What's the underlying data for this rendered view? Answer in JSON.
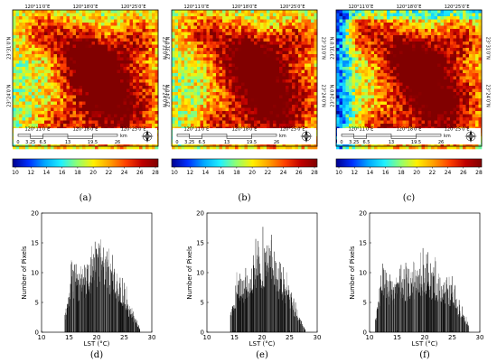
{
  "colorbar": {
    "ticks": [
      "10",
      "12",
      "14",
      "16",
      "18",
      "20",
      "22",
      "24",
      "26",
      "28"
    ],
    "colors": [
      "#00008f",
      "#0030ff",
      "#00a8ff",
      "#20f0ff",
      "#90ff70",
      "#fff000",
      "#ffa000",
      "#ff4000",
      "#c00000",
      "#800000"
    ]
  },
  "maps": [
    {
      "label": "(a)",
      "cold_edge": false
    },
    {
      "label": "(b)",
      "cold_edge": false
    },
    {
      "label": "(c)",
      "cold_edge": true
    }
  ],
  "map_ticks": {
    "top": [
      "120°11′0″E",
      "120°18′0″E",
      "120°25′0″E"
    ],
    "bottom": [
      "120°11′0″E",
      "120°18′0″E",
      "120°25′0″E"
    ],
    "left": [
      "23°31′0″N",
      "23°24′0″N"
    ],
    "right": [
      "23°31′0″N",
      "23°24′0″N"
    ]
  },
  "scalebar": {
    "ticks": [
      "0",
      "3.25",
      "6.5",
      "13",
      "19.5",
      "26"
    ],
    "unit": "km"
  },
  "north_arrow": "N",
  "chart_data": [
    {
      "type": "bar",
      "label": "(d)",
      "xlabel": "LST (°C)",
      "ylabel": "Number of Pixels",
      "xlim": [
        10,
        30
      ],
      "ylim": [
        0,
        20
      ],
      "xticks": [
        10,
        15,
        20,
        25,
        30
      ],
      "yticks": [
        0,
        5,
        10,
        15,
        20
      ],
      "x_range": [
        14.2,
        27.8
      ],
      "envelope": [
        [
          14.2,
          3
        ],
        [
          15,
          6
        ],
        [
          15.5,
          11
        ],
        [
          16,
          9
        ],
        [
          17,
          9
        ],
        [
          18,
          10
        ],
        [
          19,
          12
        ],
        [
          20,
          13.5
        ],
        [
          20.8,
          14.5
        ],
        [
          21.5,
          13
        ],
        [
          22,
          12
        ],
        [
          23,
          10
        ],
        [
          24,
          9
        ],
        [
          25,
          7
        ],
        [
          26,
          4
        ],
        [
          27,
          2
        ],
        [
          27.8,
          0.5
        ]
      ]
    },
    {
      "type": "bar",
      "label": "(e)",
      "xlabel": "LST (°C)",
      "ylabel": "Number of Pixels",
      "xlim": [
        10,
        30
      ],
      "ylim": [
        0,
        20
      ],
      "xticks": [
        10,
        15,
        20,
        25,
        30
      ],
      "yticks": [
        0,
        5,
        10,
        15,
        20
      ],
      "x_range": [
        14.2,
        27.8
      ],
      "envelope": [
        [
          14.2,
          3
        ],
        [
          15,
          6
        ],
        [
          15.5,
          10
        ],
        [
          16,
          8.5
        ],
        [
          17,
          9
        ],
        [
          18,
          10
        ],
        [
          19,
          12
        ],
        [
          20,
          13
        ],
        [
          20.8,
          14
        ],
        [
          21.5,
          13
        ],
        [
          22,
          12
        ],
        [
          23,
          10
        ],
        [
          24,
          8.5
        ],
        [
          25,
          7
        ],
        [
          26,
          4
        ],
        [
          27,
          2
        ],
        [
          27.8,
          0.5
        ]
      ]
    },
    {
      "type": "bar",
      "label": "(f)",
      "xlabel": "LST (°C)",
      "ylabel": "Number of Pixels",
      "xlim": [
        10,
        30
      ],
      "ylim": [
        0,
        20
      ],
      "xticks": [
        10,
        15,
        20,
        25,
        30
      ],
      "yticks": [
        0,
        5,
        10,
        15,
        20
      ],
      "x_range": [
        11,
        28
      ],
      "envelope": [
        [
          11,
          2
        ],
        [
          11.5,
          6
        ],
        [
          12,
          9
        ],
        [
          13,
          8
        ],
        [
          14,
          8
        ],
        [
          15,
          8.5
        ],
        [
          16,
          9
        ],
        [
          17,
          9
        ],
        [
          18,
          9.5
        ],
        [
          19,
          10
        ],
        [
          20,
          11
        ],
        [
          21,
          10
        ],
        [
          22,
          9.5
        ],
        [
          23,
          9
        ],
        [
          24,
          8
        ],
        [
          25,
          7
        ],
        [
          26,
          5
        ],
        [
          27,
          3
        ],
        [
          28,
          1
        ]
      ]
    }
  ]
}
